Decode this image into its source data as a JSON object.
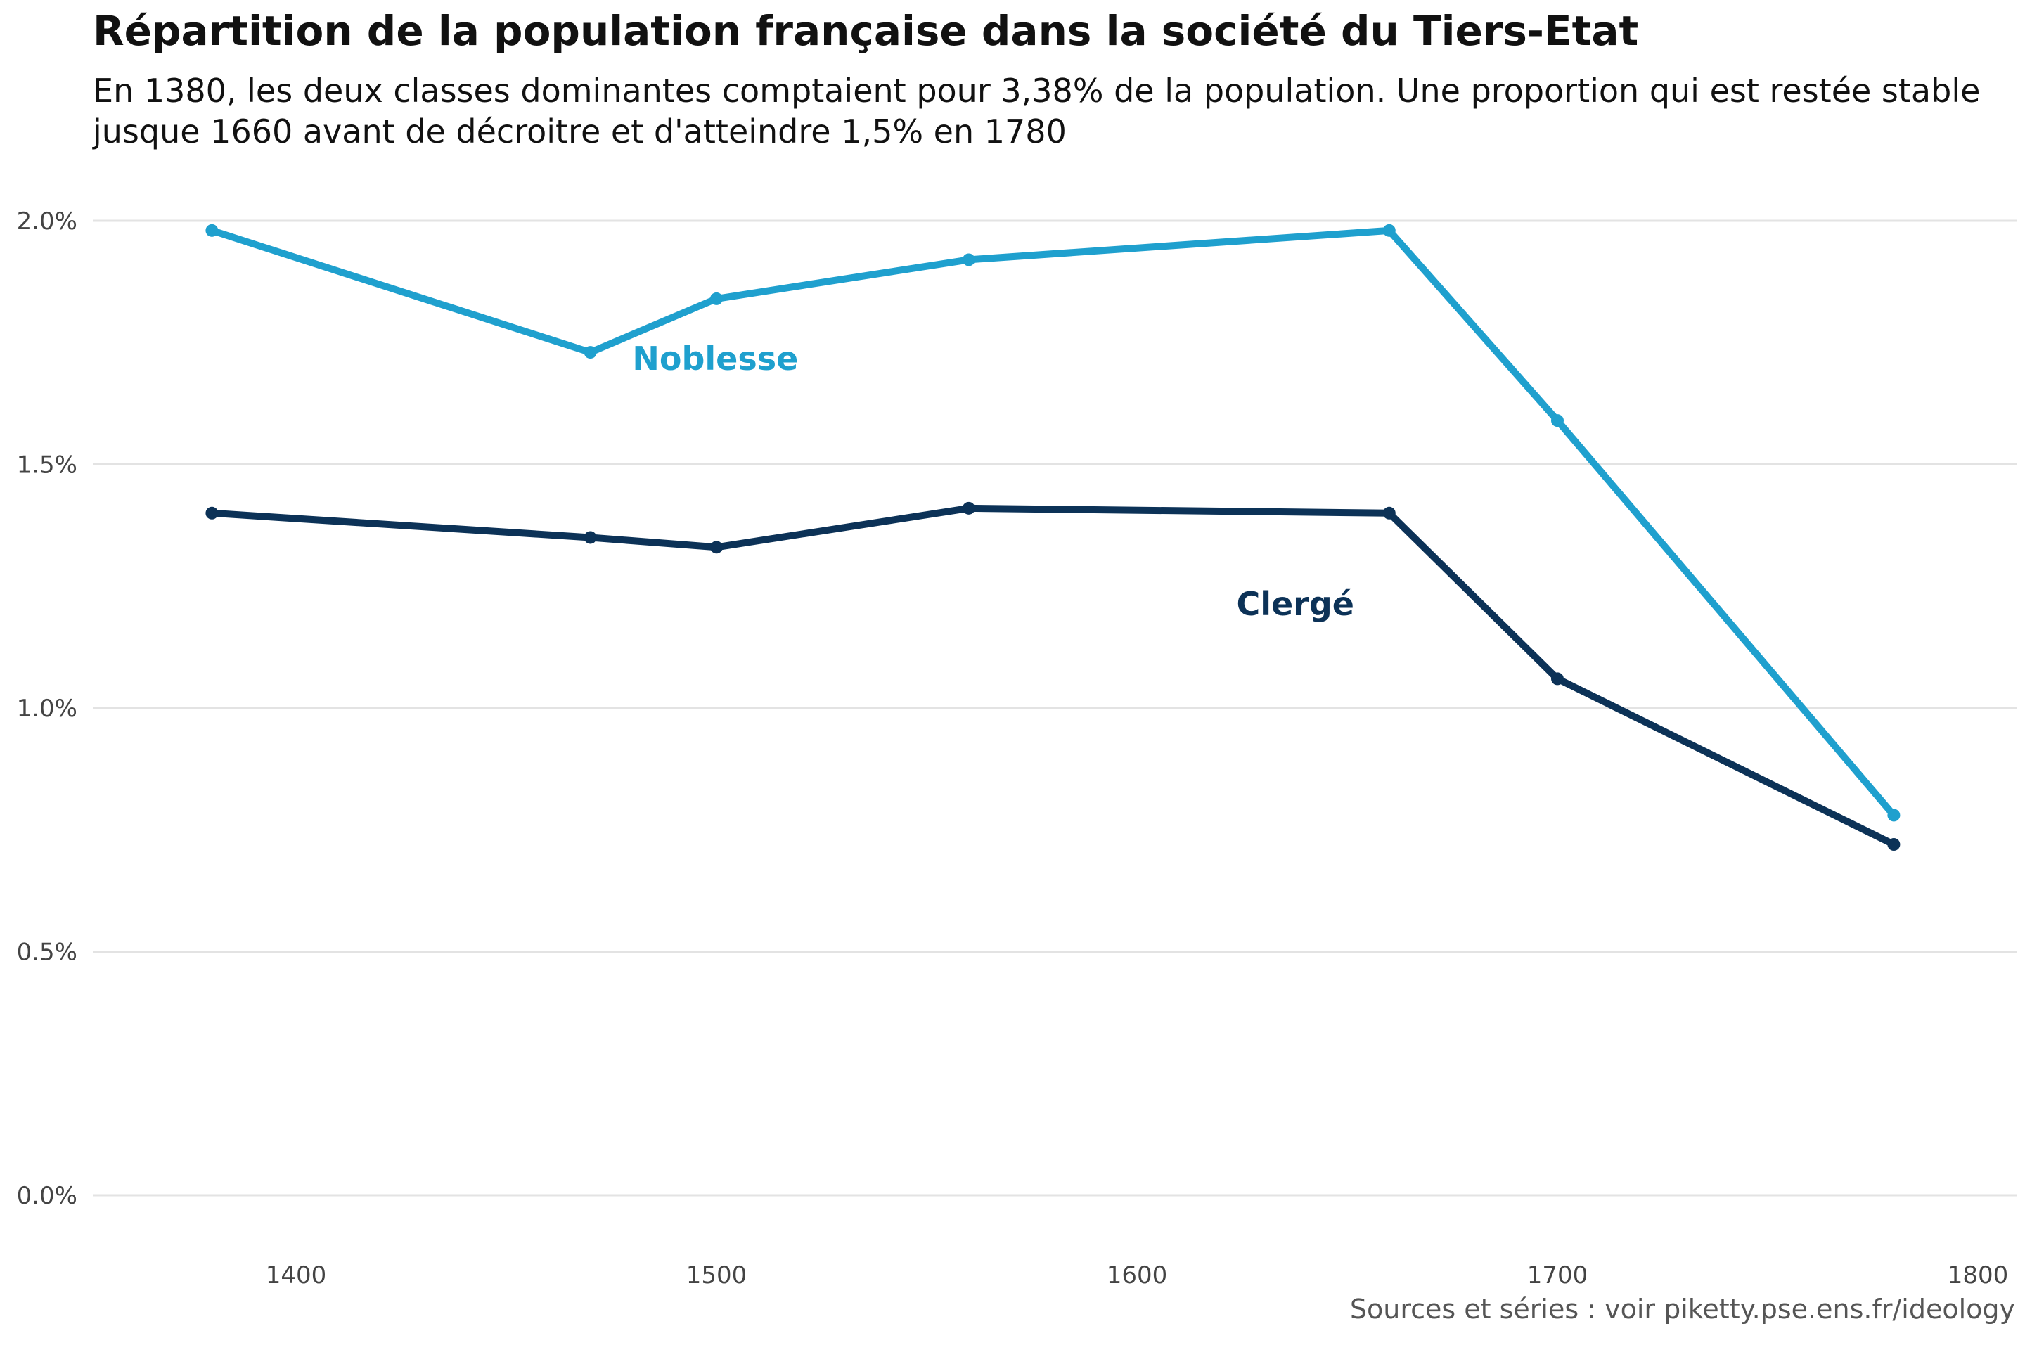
{
  "title": "Répartition de la population française dans la société du Tiers-Etat",
  "subtitle": "En 1380,  les deux classes dominantes comptaient pour 3,38%  de la population. Une proportion qui est restée stable jusque 1660  avant de décroitre et d'atteindre 1,5%  en 1780",
  "caption": "Sources et séries : voir piketty.pse.ens.fr/ideology",
  "chart_data": {
    "type": "line",
    "title": "Répartition de la population française dans la société du Tiers-Etat",
    "xlabel": "",
    "ylabel": "",
    "xlim": [
      1350,
      1800
    ],
    "ylim": [
      -0.001,
      0.021
    ],
    "x_ticks": [
      1400,
      1500,
      1600,
      1700,
      1800
    ],
    "x_tick_labels": [
      "1400",
      "1500",
      "1600",
      "1700",
      "1800"
    ],
    "y_ticks": [
      0.0,
      0.005,
      0.01,
      0.015,
      0.02
    ],
    "y_tick_labels": [
      "0.0%",
      "0.5%",
      "1.0%",
      "1.5%",
      "2.0%"
    ],
    "grid": "horizontal",
    "legend": "none (direct labels)",
    "x": [
      1380,
      1470,
      1500,
      1560,
      1660,
      1700,
      1780
    ],
    "series": [
      {
        "name": "Noblesse",
        "color": "#1fa0ce",
        "values": [
          0.0198,
          0.0173,
          0.0184,
          0.0192,
          0.0198,
          0.0159,
          0.0078
        ]
      },
      {
        "name": "Clergé",
        "color": "#0c3257",
        "values": [
          0.014,
          0.0135,
          0.0133,
          0.0141,
          0.014,
          0.0106,
          0.0072
        ]
      }
    ]
  }
}
